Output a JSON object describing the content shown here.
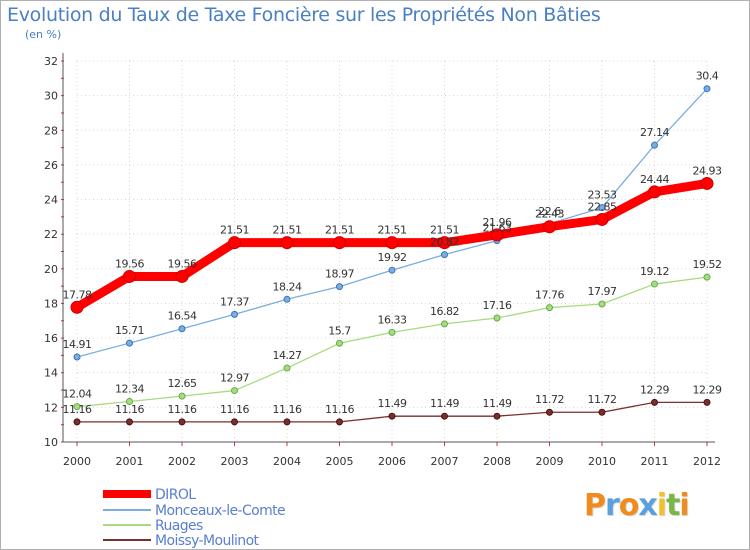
{
  "title": "Evolution du Taux de Taxe Foncière sur les Propriétés Non Bâties",
  "subtitle": "(en %)",
  "logo": {
    "letters": [
      "P",
      "r",
      "o",
      "x",
      "i",
      "t",
      "i"
    ],
    "colors": [
      "#f08c1e",
      "#5aa0dc",
      "#f08c1e",
      "#5aa0dc",
      "#f0c030",
      "#7ab648",
      "#f08c1e"
    ]
  },
  "chart_data": {
    "type": "line",
    "categories": [
      "2000",
      "2001",
      "2002",
      "2003",
      "2004",
      "2005",
      "2006",
      "2007",
      "2008",
      "2009",
      "2010",
      "2011",
      "2012"
    ],
    "ylim": [
      10,
      32
    ],
    "yticks": [
      "10",
      "12",
      "14",
      "16",
      "18",
      "20",
      "22",
      "24",
      "26",
      "28",
      "30",
      "32"
    ],
    "series": [
      {
        "name": "DIROL",
        "color": "#ff0000",
        "values": [
          17.78,
          19.56,
          19.56,
          21.51,
          21.51,
          21.51,
          21.51,
          21.51,
          21.96,
          22.43,
          22.85,
          24.44,
          24.93
        ],
        "labels": [
          "17.78",
          "19.56",
          "19.56",
          "21.51",
          "21.51",
          "21.51",
          "21.51",
          "21.51",
          "21.96",
          "22.43",
          "22.85",
          "24.44",
          "24.93"
        ]
      },
      {
        "name": "Monceaux-le-Comte",
        "color": "#7aaee0",
        "values": [
          14.91,
          15.71,
          16.54,
          17.37,
          18.24,
          18.97,
          19.92,
          20.82,
          21.63,
          22.6,
          23.53,
          27.14,
          30.4
        ],
        "labels": [
          "14.91",
          "15.71",
          "16.54",
          "17.37",
          "18.24",
          "18.97",
          "19.92",
          "20.82",
          "21.63",
          "22.6",
          "23.53",
          "27.14",
          "30.4"
        ]
      },
      {
        "name": "Ruages",
        "color": "#a6dc7c",
        "values": [
          12.04,
          12.34,
          12.65,
          12.97,
          14.27,
          15.7,
          16.33,
          16.82,
          17.16,
          17.76,
          17.97,
          19.12,
          19.52
        ],
        "labels": [
          "12.04",
          "12.34",
          "12.65",
          "12.97",
          "14.27",
          "15.7",
          "16.33",
          "16.82",
          "17.16",
          "17.76",
          "17.97",
          "19.12",
          "19.52"
        ]
      },
      {
        "name": "Moissy-Moulinot",
        "color": "#7a2e2e",
        "values": [
          11.16,
          11.16,
          11.16,
          11.16,
          11.16,
          11.16,
          11.49,
          11.49,
          11.49,
          11.72,
          11.72,
          12.29,
          12.29
        ],
        "labels": [
          "11.16",
          "11.16",
          "11.16",
          "11.16",
          "11.16",
          "11.16",
          "11.49",
          "11.49",
          "11.49",
          "11.72",
          "11.72",
          "12.29",
          "12.29"
        ]
      }
    ]
  }
}
